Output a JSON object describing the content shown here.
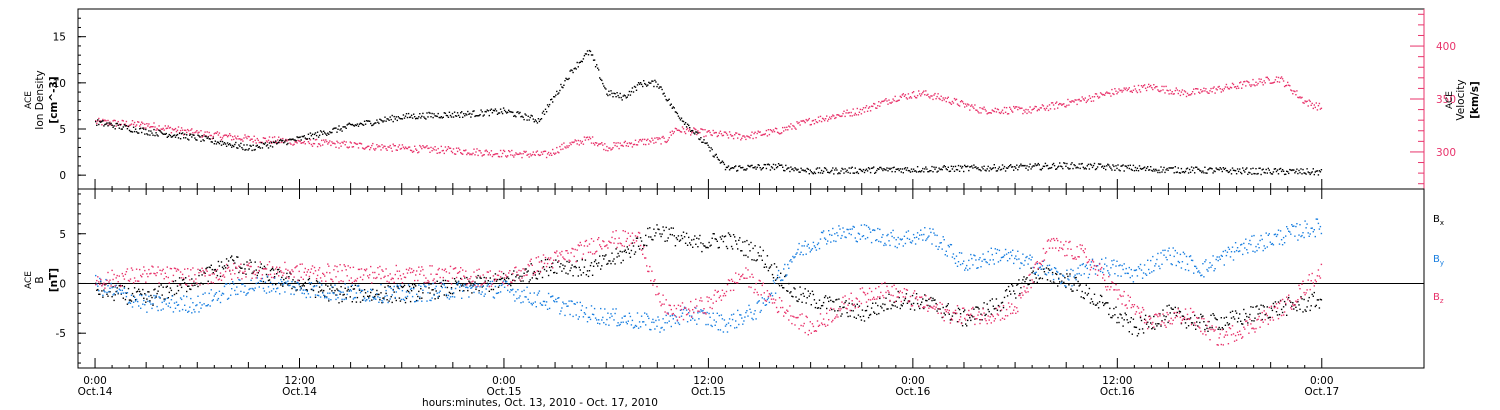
{
  "chart_data": [
    {
      "type": "scatter",
      "panel": "top",
      "ylabel_left": [
        "ACE",
        "Ion Density",
        "[cm^-3]"
      ],
      "ylabel_right": [
        "ACE",
        "Velocity",
        "[km/s]"
      ],
      "ylim_left": [
        -1.5,
        18
      ],
      "ylim_right": [
        265,
        435
      ],
      "yticks_left": [
        0,
        5,
        10,
        15
      ],
      "yticks_right": [
        300,
        350,
        400
      ],
      "colors": {
        "density": "#000000",
        "velocity": "#e8336b"
      },
      "series": [
        {
          "axis": "left",
          "color": "#000000",
          "keypoints": [
            [
              0,
              5.8
            ],
            [
              3,
              4.8
            ],
            [
              6,
              4.1
            ],
            [
              9,
              3.0
            ],
            [
              12,
              4.0
            ],
            [
              15,
              5.4
            ],
            [
              18,
              6.4
            ],
            [
              20.5,
              6.6
            ],
            [
              22,
              6.7
            ],
            [
              24,
              7.0
            ],
            [
              26,
              6.0
            ],
            [
              28,
              11.5
            ],
            [
              29,
              13.5
            ],
            [
              30,
              9.0
            ],
            [
              31,
              8.5
            ],
            [
              32,
              10.0
            ],
            [
              33,
              10.0
            ],
            [
              34,
              7.0
            ],
            [
              35,
              5.0
            ],
            [
              36,
              3.0
            ],
            [
              37,
              0.8
            ],
            [
              40,
              1.0
            ],
            [
              42,
              0.5
            ],
            [
              45,
              0.6
            ],
            [
              48,
              0.7
            ],
            [
              51,
              0.8
            ],
            [
              54,
              0.9
            ],
            [
              57,
              1.1
            ],
            [
              60,
              0.9
            ],
            [
              62,
              0.7
            ],
            [
              65,
              0.6
            ],
            [
              68,
              0.5
            ],
            [
              72,
              0.4
            ]
          ]
        },
        {
          "axis": "right",
          "color": "#e8336b",
          "keypoints": [
            [
              0,
              329
            ],
            [
              3,
              326
            ],
            [
              6,
              318
            ],
            [
              9,
              313
            ],
            [
              12,
              310
            ],
            [
              15,
              307
            ],
            [
              18,
              304
            ],
            [
              21,
              302
            ],
            [
              24,
              299
            ],
            [
              26.5,
              298
            ],
            [
              27.5,
              306
            ],
            [
              29,
              313
            ],
            [
              30,
              305
            ],
            [
              32,
              310
            ],
            [
              33.5,
              312
            ],
            [
              34,
              322
            ],
            [
              36,
              318
            ],
            [
              38,
              315
            ],
            [
              40,
              320
            ],
            [
              42,
              330
            ],
            [
              45,
              340
            ],
            [
              47,
              352
            ],
            [
              48.5,
              356
            ],
            [
              50,
              350
            ],
            [
              52,
              340
            ],
            [
              55,
              340
            ],
            [
              58,
              350
            ],
            [
              60,
              358
            ],
            [
              62,
              362
            ],
            [
              64,
              356
            ],
            [
              66,
              360
            ],
            [
              68,
              366
            ],
            [
              69.5,
              370
            ],
            [
              71,
              348
            ],
            [
              72,
              342
            ]
          ]
        }
      ]
    },
    {
      "type": "scatter",
      "panel": "bottom",
      "ylabel": [
        "ACE",
        "B",
        "[nT]"
      ],
      "ylim": [
        -8.5,
        9.5
      ],
      "yticks": [
        -5,
        0,
        5
      ],
      "legend": [
        {
          "name": "Bx",
          "color": "#000000"
        },
        {
          "name": "By",
          "color": "#1a7fe0"
        },
        {
          "name": "Bz",
          "color": "#e8336b"
        }
      ],
      "series": [
        {
          "name": "Bx",
          "color": "#000000",
          "keypoints": [
            [
              0,
              -0.5
            ],
            [
              3,
              -1.5
            ],
            [
              6,
              0.5
            ],
            [
              8,
              2.2
            ],
            [
              10,
              1.0
            ],
            [
              14,
              -1.0
            ],
            [
              18,
              -1.0
            ],
            [
              24,
              0.3
            ],
            [
              27,
              2.0
            ],
            [
              29,
              1.5
            ],
            [
              31,
              3.0
            ],
            [
              33,
              5.5
            ],
            [
              35,
              4.0
            ],
            [
              37,
              4.5
            ],
            [
              39,
              3.0
            ],
            [
              41,
              -1.0
            ],
            [
              43,
              -2.0
            ],
            [
              45,
              -3.0
            ],
            [
              47,
              -1.5
            ],
            [
              49,
              -2.0
            ],
            [
              51,
              -3.5
            ],
            [
              53,
              -2.0
            ],
            [
              55,
              1.0
            ],
            [
              57,
              0.5
            ],
            [
              59,
              -2.0
            ],
            [
              61,
              -4.5
            ],
            [
              63,
              -3.0
            ],
            [
              65,
              -4.0
            ],
            [
              67,
              -3.5
            ],
            [
              69,
              -2.5
            ],
            [
              71,
              -2.0
            ],
            [
              72,
              -1.5
            ]
          ]
        },
        {
          "name": "By",
          "color": "#1a7fe0",
          "keypoints": [
            [
              0,
              0.0
            ],
            [
              3,
              -2.0
            ],
            [
              6,
              -2.0
            ],
            [
              8,
              -0.5
            ],
            [
              10,
              0.0
            ],
            [
              14,
              -0.8
            ],
            [
              18,
              -1.0
            ],
            [
              22,
              -0.5
            ],
            [
              24,
              -0.5
            ],
            [
              27,
              -2.0
            ],
            [
              29,
              -3.0
            ],
            [
              31,
              -3.5
            ],
            [
              33,
              -4.0
            ],
            [
              35,
              -3.0
            ],
            [
              37,
              -4.0
            ],
            [
              39,
              -2.5
            ],
            [
              41,
              3.0
            ],
            [
              43,
              5.0
            ],
            [
              45,
              5.2
            ],
            [
              47,
              4.5
            ],
            [
              49,
              5.0
            ],
            [
              51,
              2.0
            ],
            [
              53,
              3.0
            ],
            [
              55,
              2.0
            ],
            [
              57,
              0.5
            ],
            [
              59,
              2.0
            ],
            [
              61,
              1.0
            ],
            [
              63,
              3.0
            ],
            [
              65,
              1.5
            ],
            [
              67,
              3.5
            ],
            [
              69,
              4.5
            ],
            [
              71,
              5.5
            ],
            [
              72,
              5.8
            ]
          ]
        },
        {
          "name": "Bz",
          "color": "#e8336b",
          "keypoints": [
            [
              0,
              0.3
            ],
            [
              3,
              1.0
            ],
            [
              6,
              0.7
            ],
            [
              9,
              1.5
            ],
            [
              12,
              1.2
            ],
            [
              16,
              1.0
            ],
            [
              20,
              1.0
            ],
            [
              24,
              0.5
            ],
            [
              26,
              2.0
            ],
            [
              28,
              3.0
            ],
            [
              30,
              4.5
            ],
            [
              32,
              4.5
            ],
            [
              33,
              -1.5
            ],
            [
              34,
              -3.0
            ],
            [
              36,
              -2.0
            ],
            [
              38,
              1.0
            ],
            [
              40,
              -2.0
            ],
            [
              42,
              -4.5
            ],
            [
              44,
              -2.0
            ],
            [
              46,
              -0.5
            ],
            [
              48,
              -1.5
            ],
            [
              50,
              -3.0
            ],
            [
              52,
              -3.2
            ],
            [
              54,
              -2.5
            ],
            [
              56,
              4.0
            ],
            [
              58,
              3.0
            ],
            [
              60,
              -1.0
            ],
            [
              62,
              -4.0
            ],
            [
              64,
              -3.0
            ],
            [
              66,
              -5.5
            ],
            [
              68,
              -4.0
            ],
            [
              70,
              -2.0
            ],
            [
              72,
              1.5
            ]
          ]
        }
      ]
    }
  ],
  "xaxis": {
    "range_hours": [
      -1,
      78
    ],
    "label": "hours:minutes, Oct. 13, 2010 - Oct. 17, 2010",
    "ticks": [
      {
        "hours": 0,
        "time": "0:00",
        "date": "Oct.14"
      },
      {
        "hours": 12,
        "time": "12:00",
        "date": "Oct.14"
      },
      {
        "hours": 24,
        "time": "0:00",
        "date": "Oct.15"
      },
      {
        "hours": 36,
        "time": "12:00",
        "date": "Oct.15"
      },
      {
        "hours": 48,
        "time": "0:00",
        "date": "Oct.16"
      },
      {
        "hours": 60,
        "time": "12:00",
        "date": "Oct.16"
      },
      {
        "hours": 72,
        "time": "0:00",
        "date": "Oct.17"
      }
    ]
  }
}
